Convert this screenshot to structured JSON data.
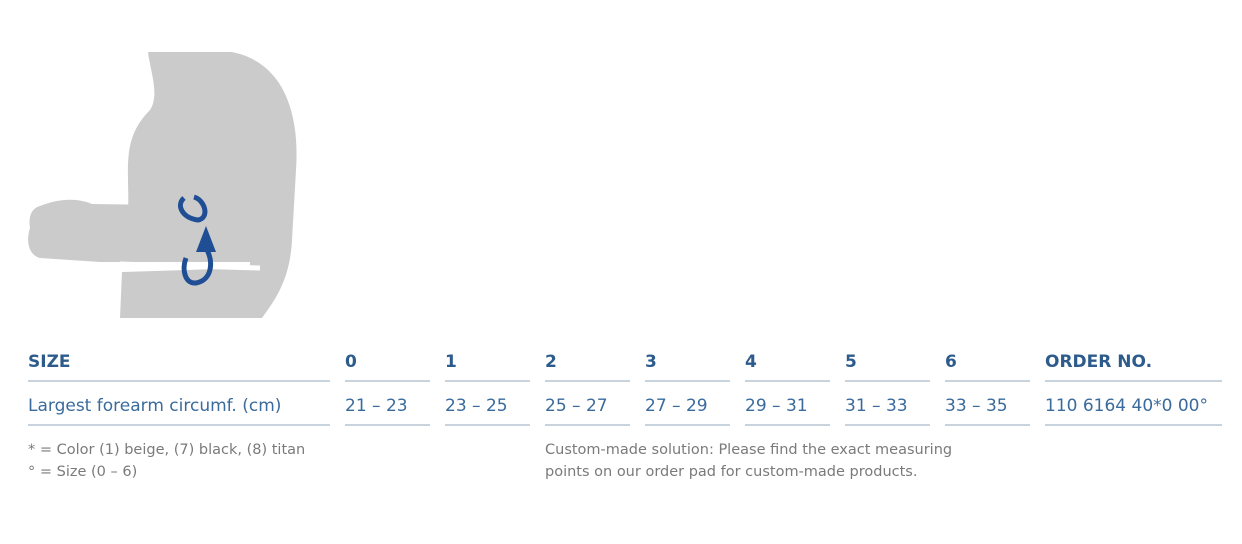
{
  "table": {
    "header": [
      "SIZE",
      "0",
      "1",
      "2",
      "3",
      "4",
      "5",
      "6",
      "ORDER NO."
    ],
    "rows": [
      [
        "Largest forearm circumf. (cm)",
        "21 – 23",
        "23 – 25",
        "25 – 27",
        "27 – 29",
        "29 – 31",
        "31 – 33",
        "33 – 35",
        "110 6164 40*0 00°"
      ]
    ]
  },
  "footnotes": {
    "left": [
      "* = Color (1) beige, (7) black, (8) titan",
      "° = Size (0 – 6)"
    ],
    "right": [
      "Custom-made solution: Please find the exact measuring",
      "points on our order pad for custom-made products."
    ]
  }
}
